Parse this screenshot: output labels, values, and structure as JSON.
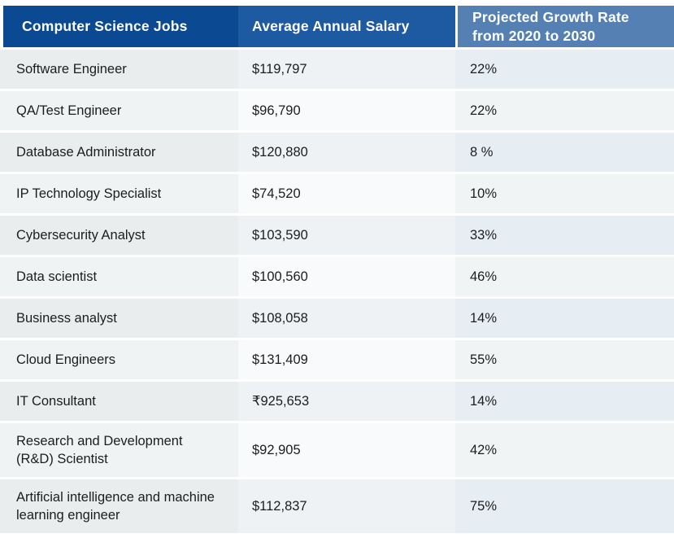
{
  "table": {
    "columns": [
      {
        "label": "Computer Science Jobs"
      },
      {
        "label": "Average Annual Salary"
      },
      {
        "label": "Projected Growth Rate from 2020 to 2030"
      }
    ],
    "rows": [
      {
        "job": "Software Engineer",
        "salary": "$119,797",
        "growth": "22%"
      },
      {
        "job": "QA/Test Engineer",
        "salary": "$96,790",
        "growth": "22%"
      },
      {
        "job": "Database Administrator",
        "salary": "$120,880",
        "growth": "8 %"
      },
      {
        "job": "IP Technology Specialist",
        "salary": "$74,520",
        "growth": "10%"
      },
      {
        "job": "Cybersecurity Analyst",
        "salary": "$103,590",
        "growth": "33%"
      },
      {
        "job": "Data scientist",
        "salary": "$100,560",
        "growth": "46%"
      },
      {
        "job": "Business analyst",
        "salary": "$108,058",
        "growth": "14%"
      },
      {
        "job": "Cloud Engineers",
        "salary": "$131,409",
        "growth": "55%"
      },
      {
        "job": "IT Consultant",
        "salary": "₹925,653",
        "growth": "14%"
      },
      {
        "job": "Research and Development (R&D) Scientist",
        "salary": "$92,905",
        "growth": "42%"
      },
      {
        "job": "Artificial intelligence and machine learning engineer",
        "salary": "$112,837",
        "growth": "75%"
      }
    ]
  },
  "colors": {
    "header_col1": "#0b4a92",
    "header_col2": "#1d5aa2",
    "header_col3": "#5480b4",
    "row_shaded_col1": "#e9edee",
    "row_shaded_col2": "#eef2f4",
    "row_shaded_col3": "#e6eef3",
    "row_light_col1": "#f0f3f4",
    "row_light_col2": "#f8fafb",
    "row_light_col3": "#f0f4f5",
    "body_text": "#1d1d1d",
    "header_text": "#ffffff"
  },
  "chart_data": {
    "type": "table",
    "title": "",
    "columns": [
      "Computer Science Jobs",
      "Average Annual Salary",
      "Projected Growth Rate from 2020 to 2030"
    ],
    "rows": [
      [
        "Software Engineer",
        "$119,797",
        "22%"
      ],
      [
        "QA/Test Engineer",
        "$96,790",
        "22%"
      ],
      [
        "Database Administrator",
        "$120,880",
        "8 %"
      ],
      [
        "IP Technology Specialist",
        "$74,520",
        "10%"
      ],
      [
        "Cybersecurity Analyst",
        "$103,590",
        "33%"
      ],
      [
        "Data scientist",
        "$100,560",
        "46%"
      ],
      [
        "Business analyst",
        "$108,058",
        "14%"
      ],
      [
        "Cloud Engineers",
        "$131,409",
        "55%"
      ],
      [
        "IT Consultant",
        "₹925,653",
        "14%"
      ],
      [
        "Research and Development (R&D) Scientist",
        "$92,905",
        "42%"
      ],
      [
        "Artificial intelligence and machine learning engineer",
        "$112,837",
        "75%"
      ]
    ]
  }
}
